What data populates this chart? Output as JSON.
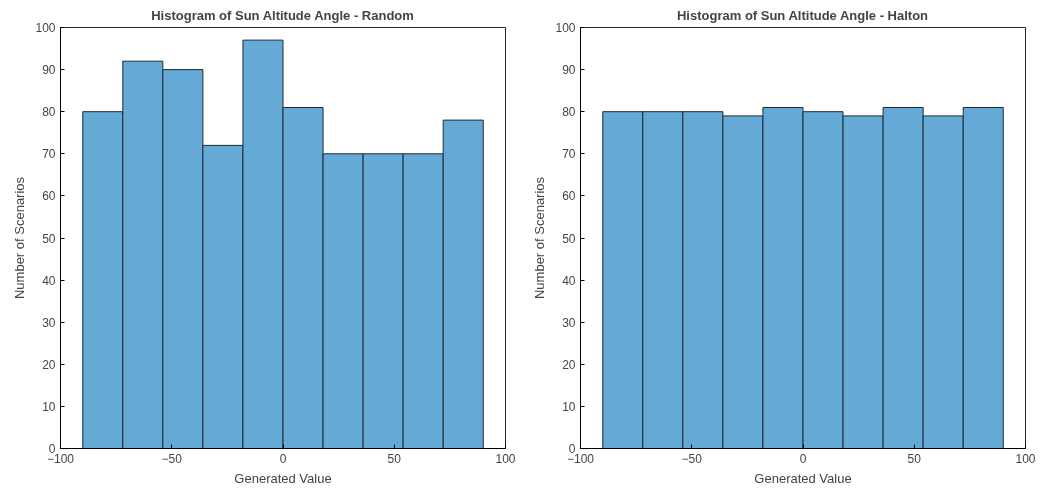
{
  "chart_data": [
    {
      "type": "histogram",
      "title": "Histogram of Sun Altitude Angle - Random",
      "xlabel": "Generated Value",
      "ylabel": "Number of Scenarios",
      "bins": [
        -90,
        -72,
        -54,
        -36,
        -18,
        0,
        18,
        36,
        54,
        72,
        90
      ],
      "values": [
        80,
        92,
        90,
        72,
        97,
        81,
        70,
        70,
        70,
        78
      ],
      "color": "#65a9d7",
      "xlim": [
        -100,
        100
      ],
      "xticks": [
        -100,
        -50,
        0,
        50,
        100
      ],
      "ylim": [
        0,
        100
      ],
      "yticks": [
        0,
        10,
        20,
        30,
        40,
        50,
        60,
        70,
        80,
        90,
        100
      ],
      "grid": false
    },
    {
      "type": "histogram",
      "title": "Histogram of Sun Altitude Angle - Halton",
      "xlabel": "Generated Value",
      "ylabel": "Number of Scenarios",
      "bins": [
        -90,
        -72,
        -54,
        -36,
        -18,
        0,
        18,
        36,
        54,
        72,
        90
      ],
      "values": [
        80,
        80,
        80,
        79,
        81,
        80,
        79,
        81,
        79,
        81
      ],
      "color": "#65a9d7",
      "xlim": [
        -100,
        100
      ],
      "xticks": [
        -100,
        -50,
        0,
        50,
        100
      ],
      "ylim": [
        0,
        100
      ],
      "yticks": [
        0,
        10,
        20,
        30,
        40,
        50,
        60,
        70,
        80,
        90,
        100
      ],
      "grid": false
    }
  ]
}
